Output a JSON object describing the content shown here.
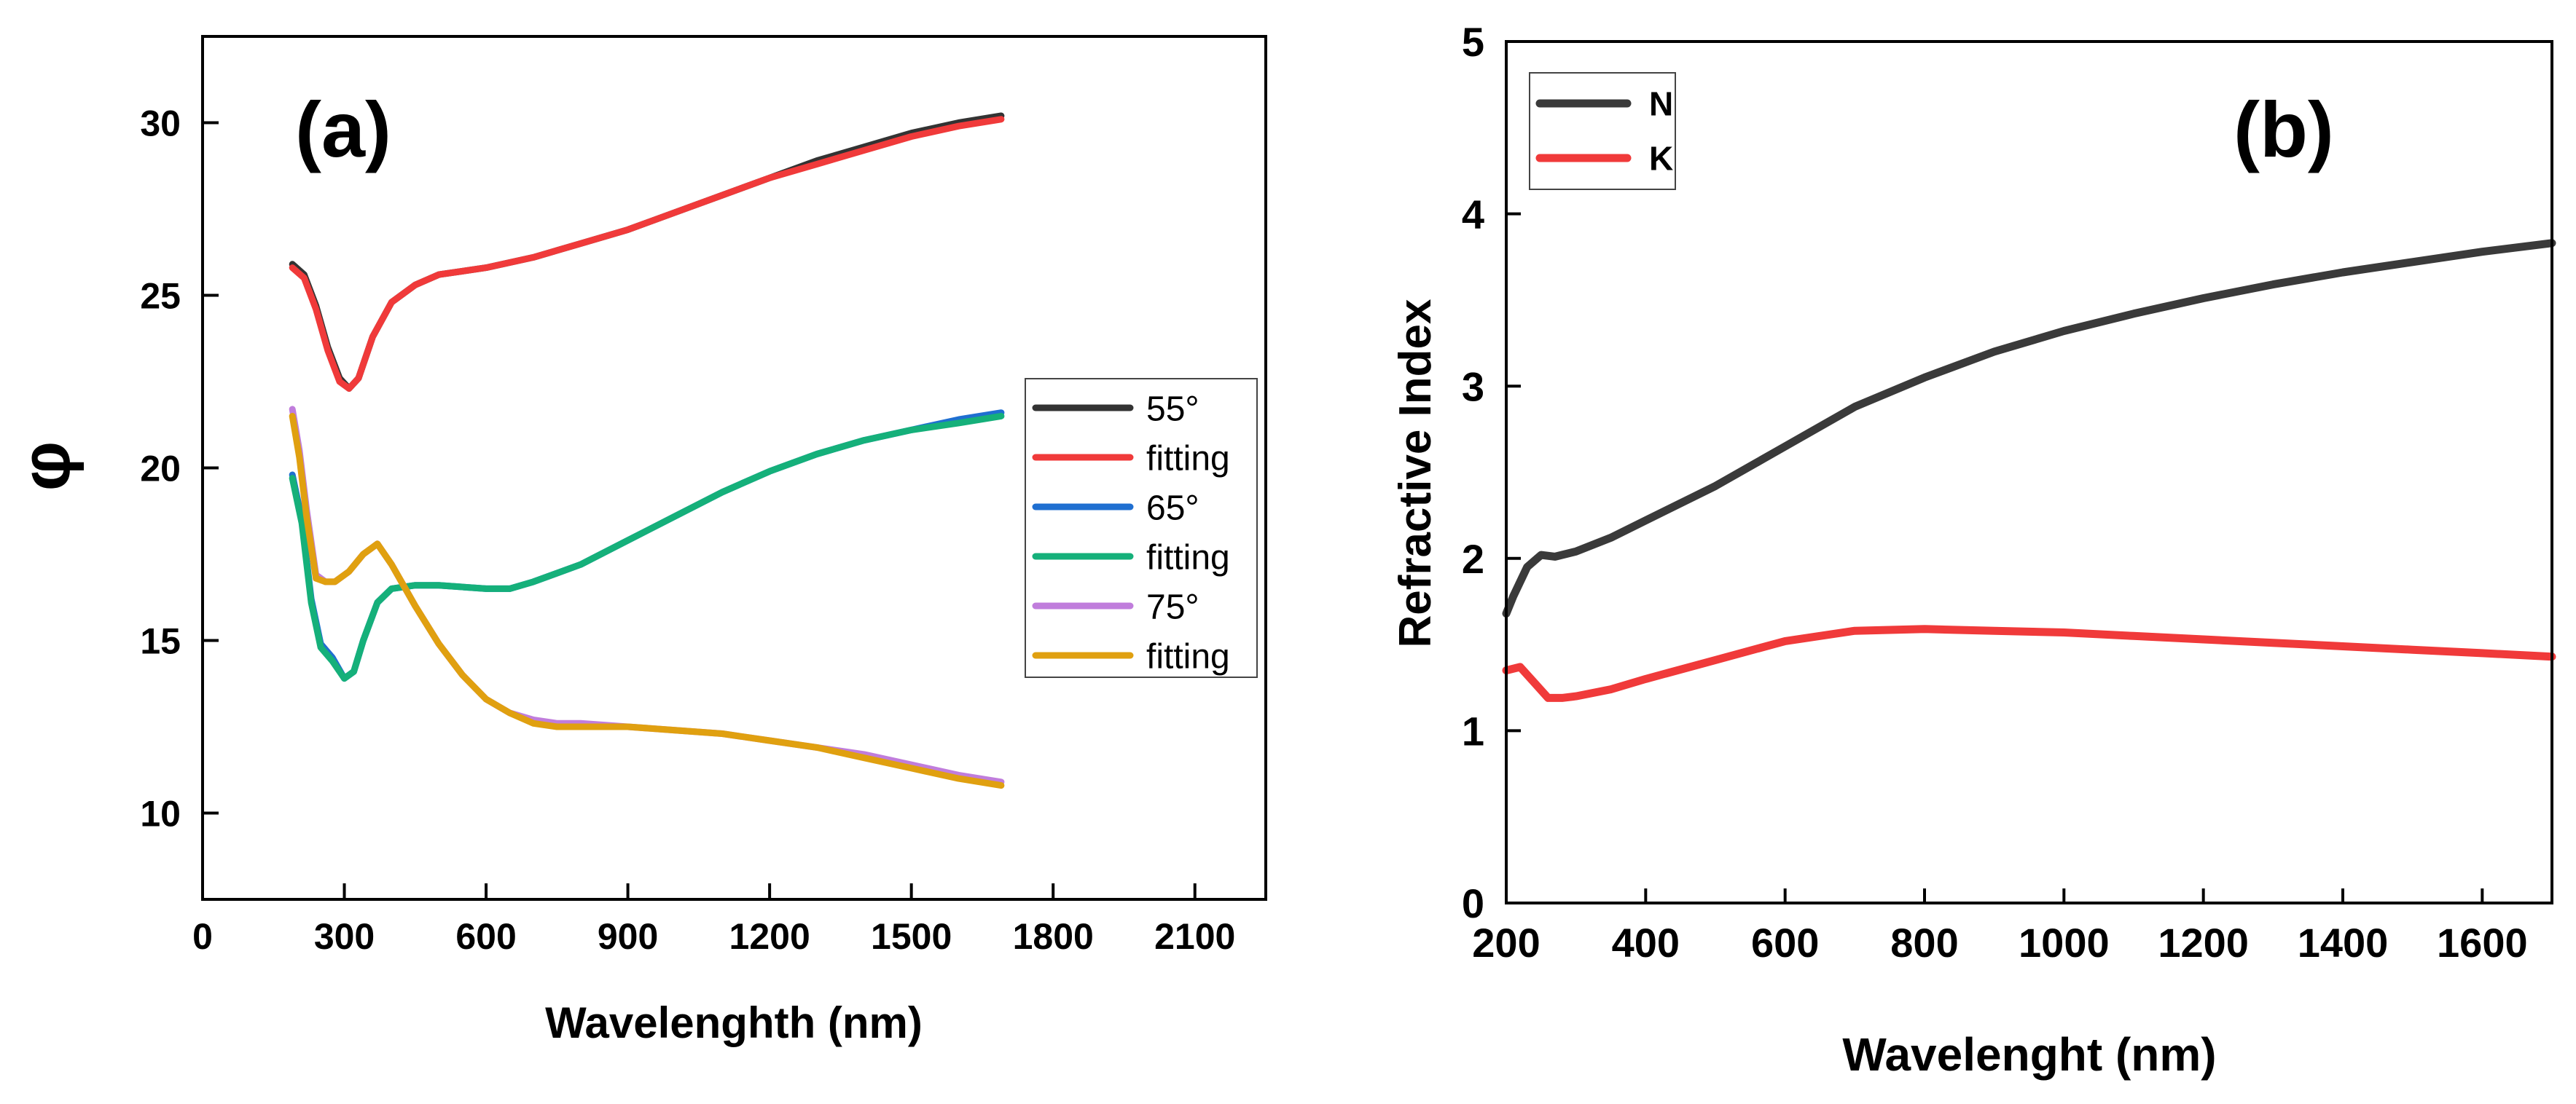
{
  "chart_data": [
    {
      "type": "line",
      "panel_label": "(a)",
      "xlabel": "Wavelenghth (nm)",
      "ylabel": "φ",
      "xlim": [
        0,
        2250
      ],
      "ylim": [
        7.5,
        32.5
      ],
      "xticks": [
        0,
        300,
        600,
        900,
        1200,
        1500,
        1800,
        2100
      ],
      "xtick_labels": [
        "0",
        "300",
        "600",
        "900",
        "1200",
        "1500",
        "1800",
        "2100"
      ],
      "yticks": [
        10,
        15,
        20,
        25,
        30
      ],
      "ytick_labels": [
        "10",
        "15",
        "20",
        "25",
        "30"
      ],
      "legend_position": "right-middle",
      "series": [
        {
          "name": "55°",
          "color": "#333333",
          "x": [
            190,
            215,
            240,
            265,
            290,
            310,
            330,
            360,
            400,
            450,
            500,
            600,
            700,
            800,
            900,
            1000,
            1100,
            1200,
            1300,
            1400,
            1500,
            1600,
            1690
          ],
          "y": [
            25.9,
            25.6,
            24.7,
            23.5,
            22.6,
            22.3,
            22.6,
            23.8,
            24.8,
            25.3,
            25.6,
            25.8,
            26.1,
            26.5,
            26.9,
            27.4,
            27.9,
            28.4,
            28.9,
            29.3,
            29.7,
            30.0,
            30.2
          ]
        },
        {
          "name": "fitting",
          "color": "#f03a3a",
          "x": [
            190,
            215,
            240,
            265,
            290,
            310,
            330,
            360,
            400,
            450,
            500,
            600,
            700,
            800,
            900,
            1000,
            1100,
            1200,
            1300,
            1400,
            1500,
            1600,
            1690
          ],
          "y": [
            25.8,
            25.5,
            24.6,
            23.4,
            22.5,
            22.3,
            22.6,
            23.8,
            24.8,
            25.3,
            25.6,
            25.8,
            26.1,
            26.5,
            26.9,
            27.4,
            27.9,
            28.4,
            28.8,
            29.2,
            29.6,
            29.9,
            30.1
          ]
        },
        {
          "name": "65°",
          "color": "#1f6fd1",
          "x": [
            190,
            210,
            230,
            250,
            275,
            300,
            320,
            340,
            370,
            400,
            450,
            500,
            600,
            650,
            700,
            800,
            900,
            1000,
            1100,
            1200,
            1300,
            1400,
            1500,
            1600,
            1690
          ],
          "y": [
            19.8,
            18.5,
            16.2,
            14.9,
            14.5,
            13.9,
            14.1,
            15.0,
            16.1,
            16.5,
            16.6,
            16.6,
            16.5,
            16.5,
            16.7,
            17.2,
            17.9,
            18.6,
            19.3,
            19.9,
            20.4,
            20.8,
            21.1,
            21.4,
            21.6
          ]
        },
        {
          "name": "fitting",
          "color": "#15b07a",
          "x": [
            190,
            210,
            230,
            250,
            275,
            300,
            320,
            340,
            370,
            400,
            450,
            500,
            600,
            650,
            700,
            800,
            900,
            1000,
            1100,
            1200,
            1300,
            1400,
            1500,
            1600,
            1690
          ],
          "y": [
            19.7,
            18.4,
            16.1,
            14.8,
            14.4,
            13.9,
            14.1,
            15.0,
            16.1,
            16.5,
            16.6,
            16.6,
            16.5,
            16.5,
            16.7,
            17.2,
            17.9,
            18.6,
            19.3,
            19.9,
            20.4,
            20.8,
            21.1,
            21.3,
            21.5
          ]
        },
        {
          "name": "75°",
          "color": "#c07ddc",
          "x": [
            190,
            205,
            220,
            240,
            260,
            280,
            310,
            340,
            370,
            400,
            450,
            500,
            550,
            600,
            650,
            700,
            750,
            800,
            900,
            1000,
            1100,
            1200,
            1300,
            1400,
            1500,
            1600,
            1690
          ],
          "y": [
            21.7,
            20.5,
            18.8,
            16.9,
            16.7,
            16.7,
            17.0,
            17.5,
            17.8,
            17.2,
            16.0,
            14.9,
            14.0,
            13.3,
            12.9,
            12.7,
            12.6,
            12.6,
            12.5,
            12.4,
            12.3,
            12.1,
            11.9,
            11.7,
            11.4,
            11.1,
            10.9
          ]
        },
        {
          "name": "fitting",
          "color": "#e0a010",
          "x": [
            190,
            205,
            220,
            240,
            260,
            280,
            310,
            340,
            370,
            400,
            450,
            500,
            550,
            600,
            650,
            700,
            750,
            800,
            900,
            1000,
            1100,
            1200,
            1300,
            1400,
            1500,
            1600,
            1690
          ],
          "y": [
            21.5,
            20.3,
            18.6,
            16.8,
            16.7,
            16.7,
            17.0,
            17.5,
            17.8,
            17.2,
            16.0,
            14.9,
            14.0,
            13.3,
            12.9,
            12.6,
            12.5,
            12.5,
            12.5,
            12.4,
            12.3,
            12.1,
            11.9,
            11.6,
            11.3,
            11.0,
            10.8
          ]
        }
      ]
    },
    {
      "type": "line",
      "panel_label": "(b)",
      "xlabel": "Wavelenght (nm)",
      "ylabel": "Refractive Index",
      "xlim": [
        200,
        1700
      ],
      "ylim": [
        0,
        5
      ],
      "xticks": [
        200,
        400,
        600,
        800,
        1000,
        1200,
        1400,
        1600
      ],
      "xtick_labels": [
        "200",
        "400",
        "600",
        "800",
        "1000",
        "1200",
        "1400",
        "1600"
      ],
      "yticks": [
        0,
        1,
        2,
        3,
        4,
        5
      ],
      "ytick_labels": [
        "0",
        "1",
        "2",
        "3",
        "4",
        "5"
      ],
      "legend_position": "top-left",
      "series": [
        {
          "name": "N",
          "color": "#3a3a3a",
          "x": [
            200,
            210,
            230,
            250,
            270,
            300,
            350,
            400,
            500,
            600,
            700,
            800,
            900,
            1000,
            1100,
            1200,
            1300,
            1400,
            1500,
            1600,
            1700
          ],
          "y": [
            1.68,
            1.78,
            1.95,
            2.02,
            2.01,
            2.04,
            2.12,
            2.22,
            2.42,
            2.65,
            2.88,
            3.05,
            3.2,
            3.32,
            3.42,
            3.51,
            3.59,
            3.66,
            3.72,
            3.78,
            3.83
          ]
        },
        {
          "name": "K",
          "color": "#f03a3a",
          "x": [
            200,
            220,
            240,
            260,
            280,
            300,
            350,
            400,
            500,
            600,
            700,
            800,
            900,
            1000,
            1100,
            1200,
            1300,
            1400,
            1500,
            1600,
            1700
          ],
          "y": [
            1.35,
            1.37,
            1.28,
            1.19,
            1.19,
            1.2,
            1.24,
            1.3,
            1.41,
            1.52,
            1.58,
            1.59,
            1.58,
            1.57,
            1.55,
            1.53,
            1.51,
            1.49,
            1.47,
            1.45,
            1.43
          ]
        }
      ]
    }
  ]
}
